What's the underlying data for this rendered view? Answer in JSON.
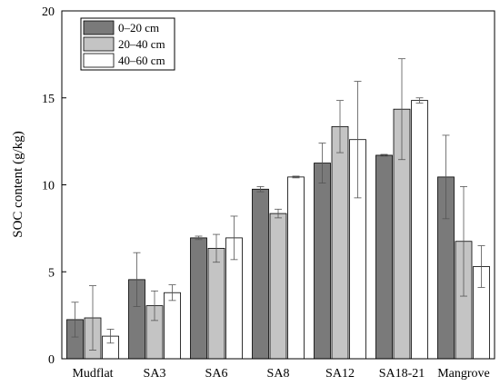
{
  "chart_data": {
    "type": "bar",
    "title": "",
    "xlabel": "",
    "ylabel": "SOC content (g/kg)",
    "ylim": [
      0,
      20
    ],
    "yticks": [
      0,
      5,
      10,
      15,
      20
    ],
    "grid": false,
    "legend_position": "top-left",
    "categories": [
      "Mudflat",
      "SA3",
      "SA6",
      "SA8",
      "SA12",
      "SA18-21",
      "Mangrove"
    ],
    "series": [
      {
        "name": "0–20 cm",
        "color": "#7a7a7a",
        "values": [
          2.25,
          4.55,
          6.95,
          9.75,
          11.25,
          11.7,
          10.45
        ],
        "errors": [
          1.0,
          1.55,
          0.1,
          0.15,
          1.15,
          0.05,
          2.4
        ]
      },
      {
        "name": "20–40 cm",
        "color": "#c4c4c4",
        "values": [
          2.35,
          3.05,
          6.35,
          8.35,
          13.35,
          14.35,
          6.75
        ],
        "errors": [
          1.85,
          0.85,
          0.8,
          0.25,
          1.5,
          2.9,
          3.15
        ]
      },
      {
        "name": "40–60 cm",
        "color": "#ffffff",
        "values": [
          1.3,
          3.8,
          6.95,
          10.45,
          12.6,
          14.85,
          5.3
        ],
        "errors": [
          0.4,
          0.45,
          1.25,
          0.05,
          3.35,
          0.15,
          1.2
        ]
      }
    ]
  }
}
